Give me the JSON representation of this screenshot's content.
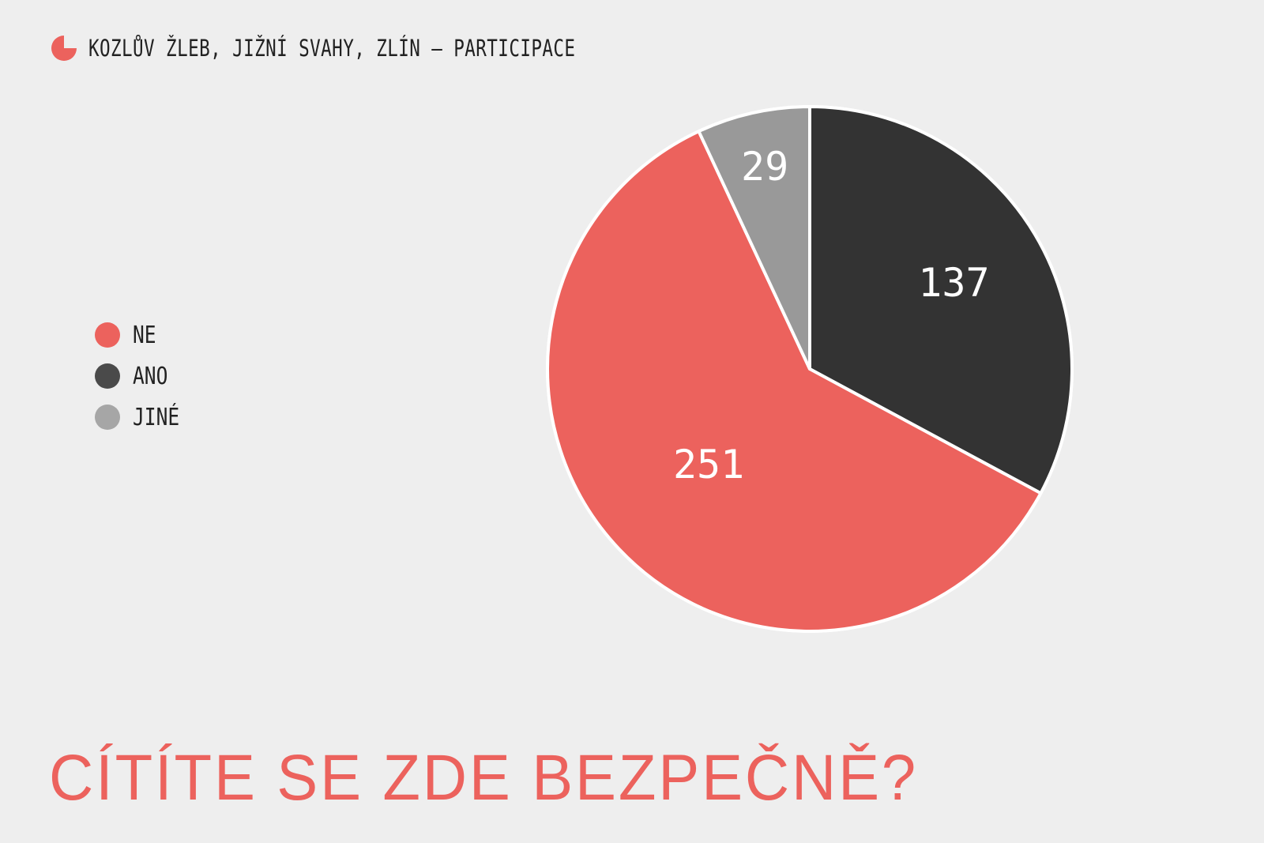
{
  "header": {
    "icon": "pie-chart-icon",
    "title": "KOZLŮV ŽLEB, JIŽNÍ SVAHY, ZLÍN – PARTICIPACE"
  },
  "question": "CÍTÍTE SE ZDE BEZPEČNĚ?",
  "legend": [
    {
      "label": "NE",
      "color": "#ec625d"
    },
    {
      "label": "ANO",
      "color": "#4a4a4a"
    },
    {
      "label": "JINÉ",
      "color": "#a6a6a6"
    }
  ],
  "chart_data": {
    "type": "pie",
    "categories": [
      "ANO",
      "NE",
      "JINÉ"
    ],
    "values": [
      137,
      251,
      29
    ],
    "colors": [
      "#333333",
      "#ec625d",
      "#999999"
    ],
    "start_angle": "12 o'clock",
    "direction": "clockwise",
    "legend_position": "left",
    "title": "CÍTÍTE SE ZDE BEZPEČNĚ?"
  }
}
